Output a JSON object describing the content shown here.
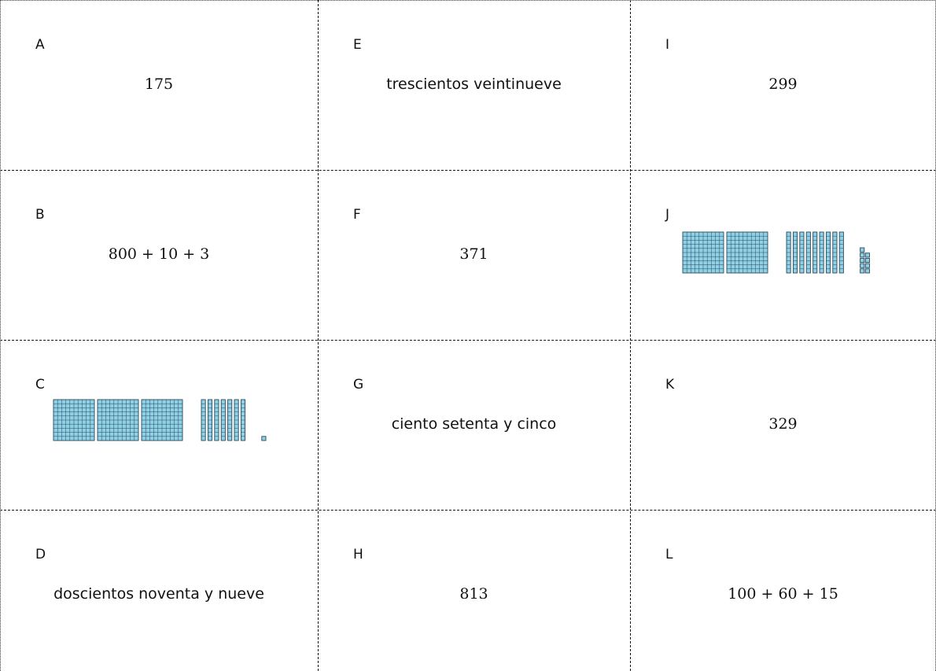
{
  "cards": [
    {
      "letter": "A",
      "kind": "math",
      "text": "175"
    },
    {
      "letter": "B",
      "kind": "math",
      "text": "800 + 10 + 3"
    },
    {
      "letter": "C",
      "kind": "blocks",
      "blocks": {
        "hundreds": 3,
        "tens": 7,
        "ones": 1
      }
    },
    {
      "letter": "D",
      "kind": "words",
      "text": "doscientos noventa y nueve"
    },
    {
      "letter": "E",
      "kind": "words",
      "text": "trescientos veintinueve"
    },
    {
      "letter": "F",
      "kind": "math",
      "text": "371"
    },
    {
      "letter": "G",
      "kind": "words",
      "text": "ciento setenta y cinco"
    },
    {
      "letter": "H",
      "kind": "math",
      "text": "813"
    },
    {
      "letter": "I",
      "kind": "math",
      "text": "299"
    },
    {
      "letter": "J",
      "kind": "blocks",
      "blocks": {
        "hundreds": 2,
        "tens": 9,
        "ones": 9
      }
    },
    {
      "letter": "K",
      "kind": "math",
      "text": "329"
    },
    {
      "letter": "L",
      "kind": "math",
      "text": "100 + 60 + 15"
    }
  ],
  "colors": {
    "block_fill": "#8fd0e6",
    "block_stroke": "#2a4a5a",
    "cut_line": "#111111"
  }
}
